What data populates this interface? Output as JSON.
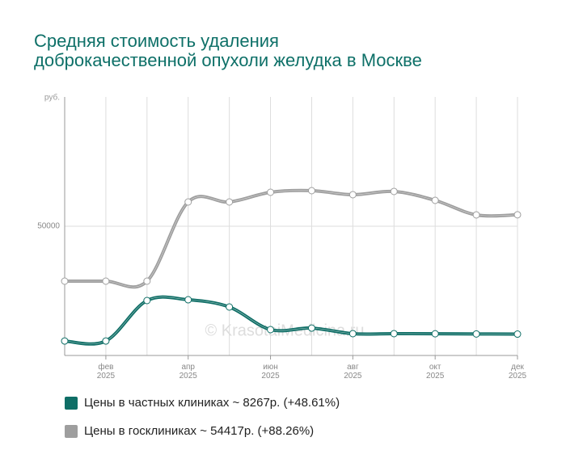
{
  "chart_data": {
    "type": "line",
    "title": "Средняя стоимость удаления доброкачественной опухоли желудка в Москве",
    "y_label": "руб.",
    "watermark": "© KrasotaiMedicina.ru",
    "categories": [
      null,
      "фев\n2025",
      null,
      "апр\n2025",
      null,
      "июн\n2025",
      null,
      "авг\n2025",
      null,
      "окт\n2025",
      null,
      "дек\n2025"
    ],
    "series": [
      {
        "name": "Цены в частных клиниках ~ 8267р. (+48.61%)",
        "color": "#0f6e66",
        "values": [
          5600,
          5600,
          21250,
          21560,
          18750,
          10000,
          10600,
          8440,
          8440,
          8400,
          8330,
          8267
        ]
      },
      {
        "name": "Цены в госклиниках ~ 54417р. (+88.26%)",
        "color": "#9e9e9e",
        "values": [
          28750,
          28750,
          28750,
          59375,
          59375,
          63125,
          63750,
          62190,
          63440,
          60000,
          54375,
          54417
        ]
      }
    ],
    "ylim": [
      0,
      100000
    ],
    "yticks": [
      50000
    ],
    "grid": true
  }
}
